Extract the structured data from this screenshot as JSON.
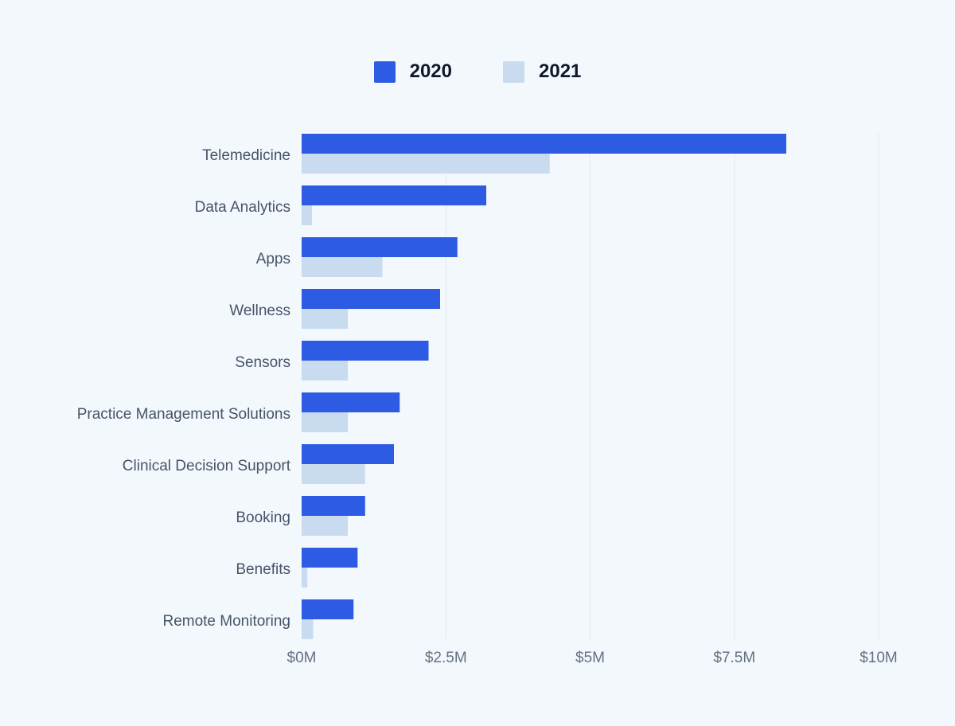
{
  "colors": {
    "background": "#f3f8fd",
    "series_2020": "#2d5be3",
    "series_2021": "#c9dbee",
    "grid": "#e4e9f0"
  },
  "legend": [
    {
      "label": "2020",
      "color": "#2d5be3"
    },
    {
      "label": "2021",
      "color": "#c9dbee"
    }
  ],
  "chart_data": {
    "type": "bar",
    "orientation": "horizontal",
    "categories": [
      "Telemedicine",
      "Data Analytics",
      "Apps",
      "Wellness",
      "Sensors",
      "Practice Management Solutions",
      "Clinical Decision Support",
      "Booking",
      "Benefits",
      "Remote Monitoring"
    ],
    "series": [
      {
        "name": "2020",
        "values": [
          8.4,
          3.2,
          2.7,
          2.4,
          2.2,
          1.7,
          1.6,
          1.1,
          0.97,
          0.9
        ]
      },
      {
        "name": "2021",
        "values": [
          4.3,
          0.18,
          1.4,
          0.8,
          0.8,
          0.8,
          1.1,
          0.8,
          0.1,
          0.2
        ]
      }
    ],
    "xlim": [
      0,
      10
    ],
    "xticks": [
      0,
      2.5,
      5,
      7.5,
      10
    ],
    "xtick_labels": [
      "$0M",
      "$2.5M",
      "$5M",
      "$7.5M",
      "$10M"
    ],
    "grid": true,
    "legend_position": "top-center"
  }
}
